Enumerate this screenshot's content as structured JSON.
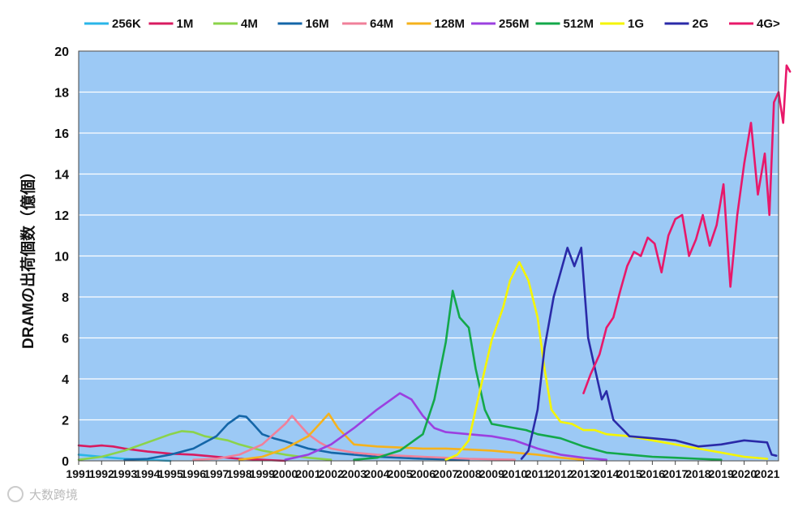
{
  "chart_data": {
    "type": "line",
    "title": "",
    "xlabel": "",
    "ylabel": "DRAMの出荷個数（億個）",
    "ylim": [
      0,
      20
    ],
    "yticks": [
      0,
      2,
      4,
      6,
      8,
      10,
      12,
      14,
      16,
      18,
      20
    ],
    "xlim": [
      1991,
      2021.5
    ],
    "xticks": [
      "1991",
      "1992",
      "1993",
      "1994",
      "1995",
      "1996",
      "1997",
      "1998",
      "1999",
      "2000",
      "2001",
      "2002",
      "2003",
      "2004",
      "2005",
      "2006",
      "2007",
      "2008",
      "2009",
      "2010",
      "2011",
      "2012",
      "2013",
      "2014",
      "2015",
      "2016",
      "2017",
      "2018",
      "2019",
      "2020",
      "2021"
    ],
    "grid": "horizontal",
    "legend_position": "top",
    "plot_background": "#9cc9f5",
    "series": [
      {
        "name": "256K",
        "color": "#29b6e8",
        "points": [
          [
            1991,
            0.3
          ],
          [
            1992,
            0.2
          ],
          [
            1993,
            0.1
          ],
          [
            1994,
            0.05
          ],
          [
            1995,
            0
          ]
        ]
      },
      {
        "name": "1M",
        "color": "#d81b60",
        "points": [
          [
            1991,
            0.75
          ],
          [
            1991.5,
            0.7
          ],
          [
            1992,
            0.75
          ],
          [
            1992.5,
            0.7
          ],
          [
            1993,
            0.6
          ],
          [
            1994,
            0.45
          ],
          [
            1995,
            0.35
          ],
          [
            1996,
            0.3
          ],
          [
            1997,
            0.2
          ],
          [
            1998,
            0.1
          ],
          [
            1999,
            0.05
          ],
          [
            2000,
            0
          ]
        ]
      },
      {
        "name": "4M",
        "color": "#8bd34a",
        "points": [
          [
            1991,
            0.05
          ],
          [
            1992,
            0.2
          ],
          [
            1993,
            0.5
          ],
          [
            1994,
            0.9
          ],
          [
            1995,
            1.3
          ],
          [
            1995.5,
            1.45
          ],
          [
            1996,
            1.4
          ],
          [
            1996.5,
            1.2
          ],
          [
            1997,
            1.1
          ],
          [
            1997.5,
            1.0
          ],
          [
            1998,
            0.8
          ],
          [
            1999,
            0.5
          ],
          [
            2000,
            0.3
          ],
          [
            2001,
            0.15
          ],
          [
            2002,
            0.05
          ]
        ]
      },
      {
        "name": "16M",
        "color": "#1466a8",
        "points": [
          [
            1993,
            0.05
          ],
          [
            1994,
            0.1
          ],
          [
            1995,
            0.3
          ],
          [
            1996,
            0.6
          ],
          [
            1997,
            1.2
          ],
          [
            1997.5,
            1.8
          ],
          [
            1998,
            2.2
          ],
          [
            1998.3,
            2.15
          ],
          [
            1998.6,
            1.8
          ],
          [
            1999,
            1.3
          ],
          [
            1999.5,
            1.1
          ],
          [
            2000,
            0.95
          ],
          [
            2001,
            0.6
          ],
          [
            2002,
            0.4
          ],
          [
            2003,
            0.3
          ],
          [
            2004,
            0.2
          ],
          [
            2006,
            0.1
          ],
          [
            2008,
            0.05
          ]
        ]
      },
      {
        "name": "64M",
        "color": "#f0809a",
        "points": [
          [
            1996,
            0.05
          ],
          [
            1997,
            0.1
          ],
          [
            1998,
            0.3
          ],
          [
            1999,
            0.8
          ],
          [
            1999.5,
            1.3
          ],
          [
            2000,
            1.8
          ],
          [
            2000.3,
            2.2
          ],
          [
            2000.6,
            1.8
          ],
          [
            2001,
            1.3
          ],
          [
            2001.5,
            0.9
          ],
          [
            2002,
            0.6
          ],
          [
            2003,
            0.4
          ],
          [
            2004,
            0.3
          ],
          [
            2006,
            0.2
          ],
          [
            2008,
            0.1
          ],
          [
            2010,
            0.05
          ]
        ]
      },
      {
        "name": "128M",
        "color": "#f5b21c",
        "points": [
          [
            1998,
            0.05
          ],
          [
            1999,
            0.2
          ],
          [
            2000,
            0.6
          ],
          [
            2001,
            1.2
          ],
          [
            2001.5,
            1.8
          ],
          [
            2001.9,
            2.3
          ],
          [
            2002.3,
            1.6
          ],
          [
            2003,
            0.8
          ],
          [
            2004,
            0.7
          ],
          [
            2005,
            0.65
          ],
          [
            2006,
            0.6
          ],
          [
            2007,
            0.6
          ],
          [
            2008,
            0.55
          ],
          [
            2009,
            0.5
          ],
          [
            2010,
            0.4
          ],
          [
            2011,
            0.3
          ],
          [
            2012,
            0.15
          ],
          [
            2013,
            0.05
          ]
        ]
      },
      {
        "name": "256M",
        "color": "#9b40e0",
        "points": [
          [
            2000,
            0.05
          ],
          [
            2001,
            0.3
          ],
          [
            2002,
            0.8
          ],
          [
            2003,
            1.6
          ],
          [
            2004,
            2.5
          ],
          [
            2004.5,
            2.9
          ],
          [
            2005,
            3.3
          ],
          [
            2005.5,
            3.0
          ],
          [
            2006,
            2.2
          ],
          [
            2006.5,
            1.6
          ],
          [
            2007,
            1.4
          ],
          [
            2008,
            1.3
          ],
          [
            2009,
            1.2
          ],
          [
            2010,
            1.0
          ],
          [
            2011,
            0.6
          ],
          [
            2012,
            0.3
          ],
          [
            2013,
            0.15
          ],
          [
            2014,
            0.05
          ]
        ]
      },
      {
        "name": "512M",
        "color": "#13a84a",
        "points": [
          [
            2003,
            0.05
          ],
          [
            2004,
            0.15
          ],
          [
            2005,
            0.5
          ],
          [
            2006,
            1.3
          ],
          [
            2006.5,
            3.0
          ],
          [
            2007,
            5.8
          ],
          [
            2007.3,
            8.3
          ],
          [
            2007.6,
            7.0
          ],
          [
            2008,
            6.5
          ],
          [
            2008.3,
            4.5
          ],
          [
            2008.7,
            2.5
          ],
          [
            2009,
            1.8
          ],
          [
            2009.5,
            1.7
          ],
          [
            2010,
            1.6
          ],
          [
            2010.5,
            1.5
          ],
          [
            2011,
            1.3
          ],
          [
            2012,
            1.1
          ],
          [
            2013,
            0.7
          ],
          [
            2014,
            0.4
          ],
          [
            2015,
            0.3
          ],
          [
            2016,
            0.2
          ],
          [
            2017,
            0.15
          ],
          [
            2018,
            0.1
          ],
          [
            2019,
            0.05
          ]
        ]
      },
      {
        "name": "1G",
        "color": "#f5f500",
        "points": [
          [
            2007,
            0.05
          ],
          [
            2007.5,
            0.3
          ],
          [
            2008,
            1.0
          ],
          [
            2008.5,
            3.5
          ],
          [
            2009,
            5.9
          ],
          [
            2009.5,
            7.5
          ],
          [
            2009.8,
            8.8
          ],
          [
            2010.2,
            9.7
          ],
          [
            2010.6,
            8.8
          ],
          [
            2011,
            7.0
          ],
          [
            2011.3,
            4.5
          ],
          [
            2011.6,
            2.5
          ],
          [
            2012,
            1.9
          ],
          [
            2012.5,
            1.8
          ],
          [
            2013,
            1.5
          ],
          [
            2013.5,
            1.5
          ],
          [
            2014,
            1.3
          ],
          [
            2015,
            1.2
          ],
          [
            2016,
            1.0
          ],
          [
            2017,
            0.8
          ],
          [
            2018,
            0.6
          ],
          [
            2019,
            0.4
          ],
          [
            2020,
            0.2
          ],
          [
            2021,
            0.1
          ]
        ]
      },
      {
        "name": "2G",
        "color": "#2a2aa8",
        "points": [
          [
            2010.3,
            0.1
          ],
          [
            2010.6,
            0.5
          ],
          [
            2011,
            2.5
          ],
          [
            2011.3,
            5.5
          ],
          [
            2011.7,
            8.0
          ],
          [
            2012,
            9.2
          ],
          [
            2012.3,
            10.4
          ],
          [
            2012.6,
            9.5
          ],
          [
            2012.9,
            10.4
          ],
          [
            2013.2,
            6.0
          ],
          [
            2013.5,
            4.5
          ],
          [
            2013.8,
            3.0
          ],
          [
            2014,
            3.4
          ],
          [
            2014.3,
            2.0
          ],
          [
            2015,
            1.2
          ],
          [
            2016,
            1.1
          ],
          [
            2017,
            1.0
          ],
          [
            2018,
            0.7
          ],
          [
            2019,
            0.8
          ],
          [
            2020,
            1.0
          ],
          [
            2021,
            0.9
          ],
          [
            2021.2,
            0.3
          ],
          [
            2021.4,
            0.25
          ]
        ]
      },
      {
        "name": "4G>",
        "color": "#e8186a",
        "points": [
          [
            2013,
            3.3
          ],
          [
            2013.3,
            4.2
          ],
          [
            2013.7,
            5.2
          ],
          [
            2014,
            6.5
          ],
          [
            2014.3,
            7.0
          ],
          [
            2014.6,
            8.3
          ],
          [
            2014.9,
            9.5
          ],
          [
            2015.2,
            10.2
          ],
          [
            2015.5,
            10.0
          ],
          [
            2015.8,
            10.9
          ],
          [
            2016.1,
            10.6
          ],
          [
            2016.4,
            9.2
          ],
          [
            2016.7,
            11.0
          ],
          [
            2017,
            11.8
          ],
          [
            2017.3,
            12.0
          ],
          [
            2017.6,
            10.0
          ],
          [
            2017.9,
            10.8
          ],
          [
            2018.2,
            12.0
          ],
          [
            2018.5,
            10.5
          ],
          [
            2018.8,
            11.5
          ],
          [
            2019.1,
            13.5
          ],
          [
            2019.4,
            8.5
          ],
          [
            2019.7,
            12.0
          ],
          [
            2020,
            14.5
          ],
          [
            2020.3,
            16.5
          ],
          [
            2020.6,
            13.0
          ],
          [
            2020.9,
            15.0
          ],
          [
            2021.1,
            12.0
          ],
          [
            2021.3,
            17.5
          ],
          [
            2021.5,
            18.0
          ],
          [
            2021.7,
            16.5
          ],
          [
            2021.85,
            19.3
          ],
          [
            2022,
            19.0
          ]
        ]
      }
    ]
  },
  "watermark": "大数跨境"
}
